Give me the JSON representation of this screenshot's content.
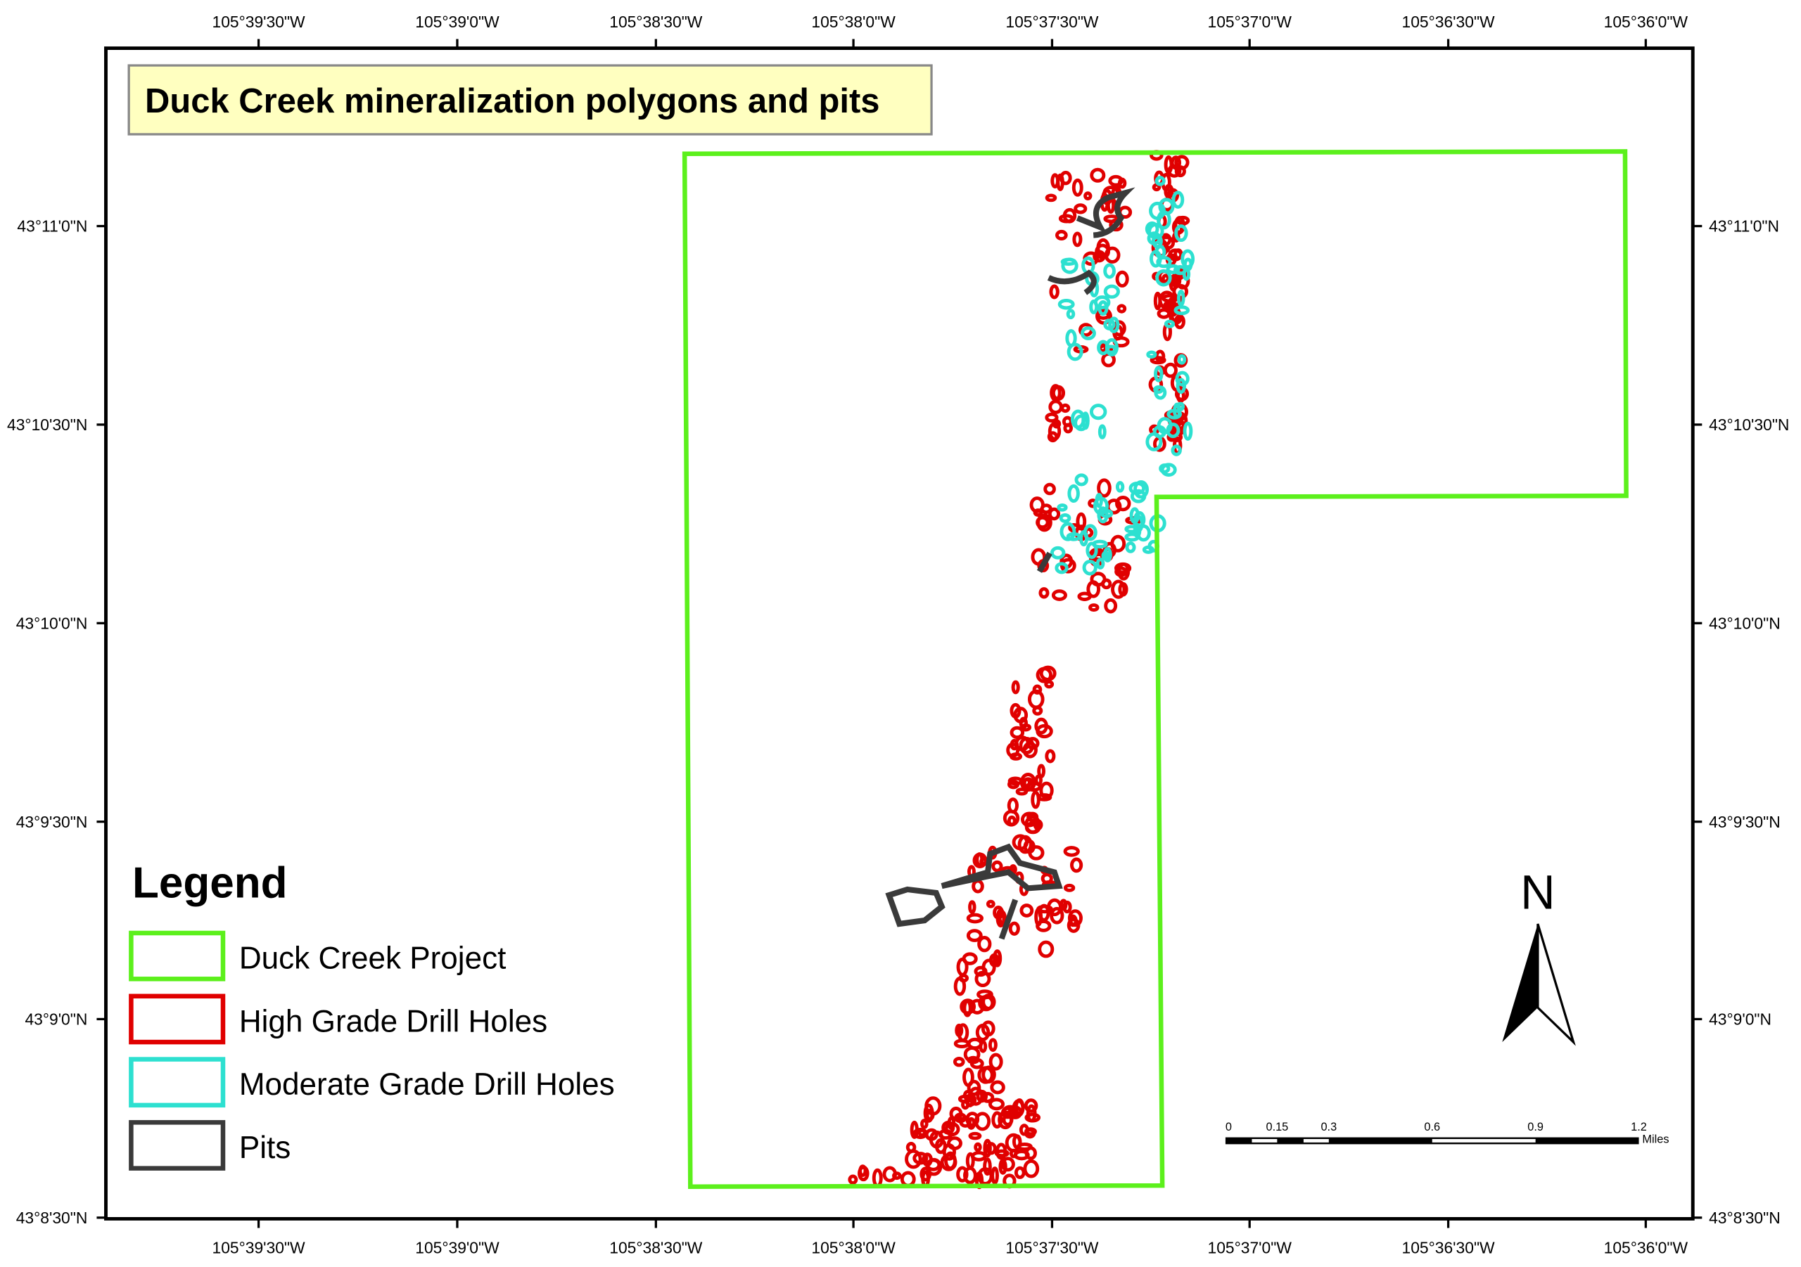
{
  "map": {
    "title": "Duck Creek mineralization polygons and pits",
    "lon_labels": [
      "105°39'30\"W",
      "105°39'0\"W",
      "105°38'30\"W",
      "105°38'0\"W",
      "105°37'30\"W",
      "105°37'0\"W",
      "105°36'30\"W",
      "105°36'0\"W"
    ],
    "lat_labels": [
      "43°11'0\"N",
      "43°10'30\"N",
      "43°10'0\"N",
      "43°9'30\"N",
      "43°9'0\"N",
      "43°8'30\"N"
    ],
    "legend": {
      "title": "Legend",
      "items": [
        {
          "label": "Duck Creek Project"
        },
        {
          "label": "High Grade Drill Holes"
        },
        {
          "label": "Moderate Grade Drill Holes"
        },
        {
          "label": "Pits"
        }
      ]
    },
    "scale_bar": {
      "labels": [
        "0",
        "0.15",
        "0.3",
        "0.6",
        "0.9",
        "1.2"
      ],
      "unit": "Miles"
    },
    "north_arrow": "N"
  }
}
